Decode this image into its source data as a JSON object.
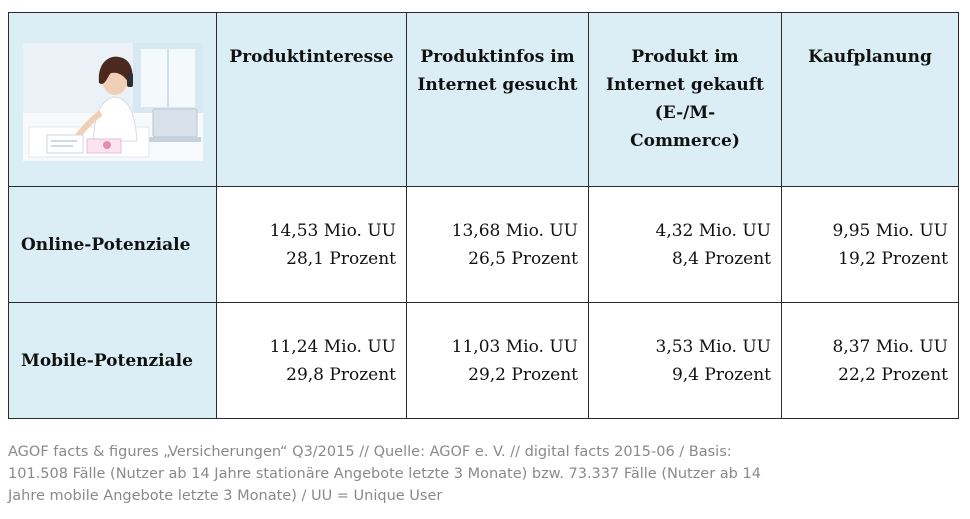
{
  "table": {
    "headers": [
      "Produktinteresse",
      "Produktinfos im Internet gesucht",
      "Produkt im Internet gekauft (E-/M-Commerce)",
      "Kaufplanung"
    ],
    "header_lines": [
      [
        "Produktinteresse"
      ],
      [
        "Produktinfos im",
        "Internet gesucht"
      ],
      [
        "Produkt im",
        "Internet gekauft",
        "(E-/M-",
        "Commerce)"
      ],
      [
        "Kaufplanung"
      ]
    ],
    "rows": [
      {
        "label": "Online-Potenziale",
        "cells": [
          {
            "uu": "14,53 Mio. UU",
            "pct": "28,1 Prozent"
          },
          {
            "uu": "13,68 Mio. UU",
            "pct": "26,5 Prozent"
          },
          {
            "uu": "4,32 Mio. UU",
            "pct": "8,4 Prozent"
          },
          {
            "uu": "9,95 Mio. UU",
            "pct": "19,2 Prozent"
          }
        ]
      },
      {
        "label": "Mobile-Potenziale",
        "cells": [
          {
            "uu": "11,24 Mio. UU",
            "pct": "29,8 Prozent"
          },
          {
            "uu": "11,03 Mio. UU",
            "pct": "29,2 Prozent"
          },
          {
            "uu": "3,53 Mio. UU",
            "pct": "9,4 Prozent"
          },
          {
            "uu": "8,37 Mio. UU",
            "pct": "22,2 Prozent"
          }
        ]
      }
    ]
  },
  "footer": {
    "lines": [
      "AGOF facts & figures „Versicherungen“ Q3/2015 // Quelle: AGOF e. V. // digital facts 2015-06 / Basis:",
      "101.508 Fälle (Nutzer ab 14 Jahre stationäre Angebote letzte 3 Monate) bzw. 73.337 Fälle (Nutzer ab 14",
      "Jahre mobile Angebote letzte 3 Monate) / UU = Unique User"
    ]
  },
  "colors": {
    "header_bg": "#dbeef5",
    "border": "#2b2b2b",
    "footer_text": "#8a8a8a"
  }
}
